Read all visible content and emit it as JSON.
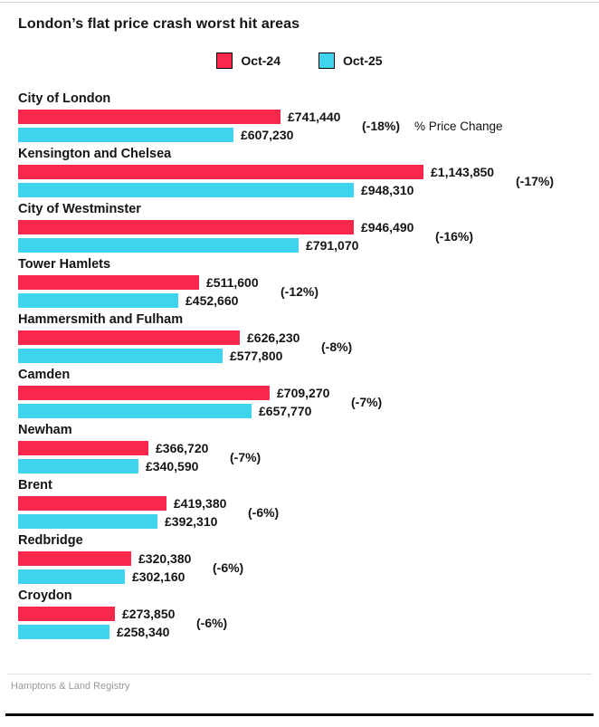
{
  "title": "London’s flat price crash worst hit areas",
  "source": "Hamptons & Land Registry",
  "pct_axis_label": "% Price Change",
  "colors": {
    "oct24": "#f8274b",
    "oct25": "#3ed4ee",
    "text": "#141414",
    "source_text": "#9a9a9a"
  },
  "chart_data": {
    "type": "bar",
    "orientation": "horizontal",
    "title": "London’s flat price crash worst hit areas",
    "xlabel": "",
    "ylabel": "",
    "xmax": 1143850,
    "grid": false,
    "legend_position": "top-center",
    "currency_prefix": "£",
    "categories": [
      "City of London",
      "Kensington and Chelsea",
      "City of Westminster",
      "Tower Hamlets",
      "Hammersmith and Fulham",
      "Camden",
      "Newham",
      "Brent",
      "Redbridge",
      "Croydon"
    ],
    "series": [
      {
        "name": "Oct-24",
        "color": "#f8274b",
        "values": [
          741440,
          1143850,
          946490,
          511600,
          626230,
          709270,
          366720,
          419380,
          320380,
          273850
        ]
      },
      {
        "name": "Oct-25",
        "color": "#3ed4ee",
        "values": [
          607230,
          948310,
          791070,
          452660,
          577800,
          657770,
          340590,
          392310,
          302160,
          258340
        ]
      }
    ],
    "pct_change": [
      "(-18%)",
      "(-17%)",
      "(-16%)",
      "(-12%)",
      "(-8%)",
      "(-7%)",
      "(-7%)",
      "(-6%)",
      "(-6%)",
      "(-6%)"
    ]
  }
}
